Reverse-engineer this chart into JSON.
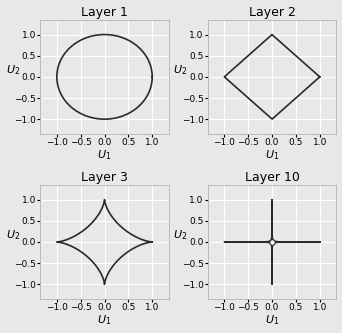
{
  "layers": [
    1,
    2,
    3,
    10
  ],
  "titles": [
    "Layer 1",
    "Layer 2",
    "Layer 3",
    "Layer 10"
  ],
  "xlim": [
    -1.35,
    1.35
  ],
  "ylim": [
    -1.35,
    1.35
  ],
  "xticks": [
    -1.0,
    -0.5,
    0.0,
    0.5,
    1.0
  ],
  "yticks": [
    -1.0,
    -0.5,
    0.0,
    0.5,
    1.0
  ],
  "xlabel": "$U_1$",
  "ylabel": "$U_2$",
  "line_color": "#2a2a2a",
  "line_width": 1.2,
  "background_color": "#e8e8e8",
  "axes_facecolor": "#e8e8e8",
  "grid_color": "#ffffff",
  "grid_linewidth": 0.8,
  "n_points": 3000,
  "title_fontsize": 9,
  "tick_fontsize": 6.5,
  "label_fontsize": 8,
  "spine_color": "#aaaaaa",
  "spine_linewidth": 0.5,
  "marker10_size": 4
}
